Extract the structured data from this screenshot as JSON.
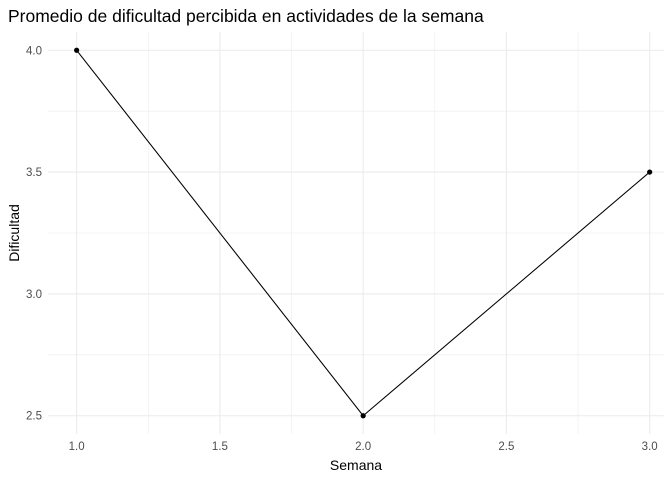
{
  "chart_data": {
    "type": "line",
    "title": "Promedio de dificultad percibida en actividades de la semana",
    "xlabel": "Semana",
    "ylabel": "Dificultad",
    "x": [
      1.0,
      2.0,
      3.0
    ],
    "series": [
      {
        "values": [
          4.0,
          2.5,
          3.5
        ],
        "color": "#000000"
      }
    ],
    "xlim": [
      0.9,
      3.05
    ],
    "ylim": [
      2.425,
      4.075
    ],
    "xticks": [
      1.0,
      1.5,
      2.0,
      2.5,
      3.0
    ],
    "xtick_labels": [
      "1.0",
      "1.5",
      "2.0",
      "2.5",
      "3.0"
    ],
    "yticks": [
      2.5,
      3.0,
      3.5,
      4.0
    ],
    "ytick_labels": [
      "2.5",
      "3.0",
      "3.5",
      "4.0"
    ],
    "grid": true,
    "markers": true,
    "legend": "none"
  }
}
